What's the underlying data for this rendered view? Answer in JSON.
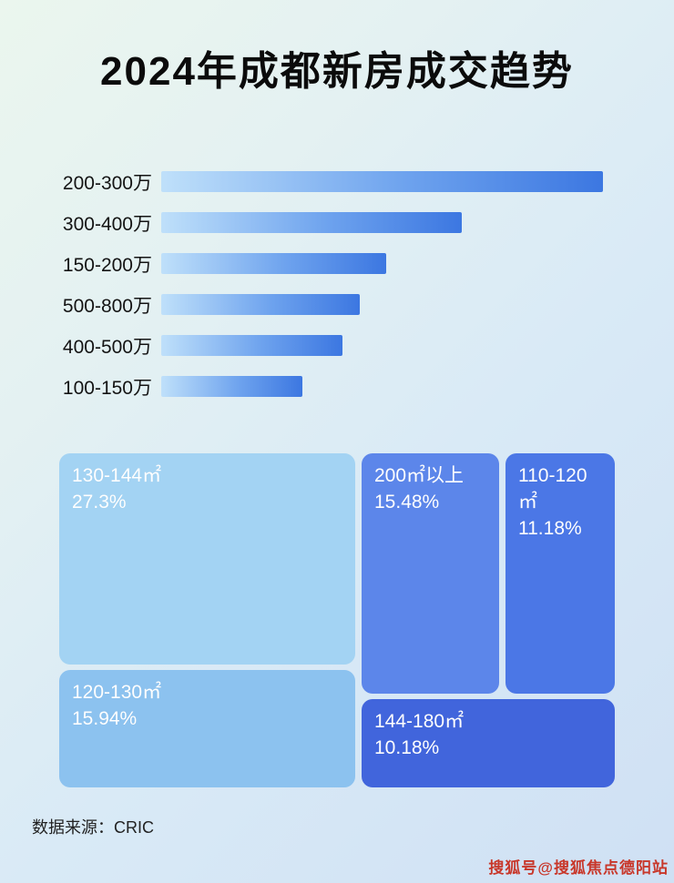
{
  "page": {
    "title": "2024年成都新房成交趋势",
    "source_note": "数据来源：CRIC",
    "watermark": "搜狐号@搜狐焦点德阳站"
  },
  "colors": {
    "bar_gradient_start": "#bfe0fa",
    "bar_gradient_end": "#3c77e1",
    "background_top_left": "#ebf6ee",
    "background_bottom_right": "#cfe0f4",
    "title_text": "#0b0b0b",
    "watermark_text": "#c8372a"
  },
  "chart_data": [
    {
      "type": "bar",
      "orientation": "horizontal",
      "title": "2024年成都新房成交趋势",
      "categories": [
        "200-300万",
        "300-400万",
        "150-200万",
        "500-800万",
        "400-500万",
        "100-150万"
      ],
      "values": [
        100,
        68,
        51,
        45,
        41,
        32
      ],
      "value_note": "no numeric axis shown; values estimated as bar length relative to longest bar = 100",
      "xlabel": "",
      "ylabel": "",
      "grid": false,
      "legend": false,
      "bar_color_gradient": [
        "#bfe0fa",
        "#3c77e1"
      ]
    },
    {
      "type": "treemap",
      "title": "",
      "source": "CRIC",
      "items": [
        {
          "label": "130-144㎡",
          "value": 27.3,
          "value_label": "27.3%",
          "color": "#a3d3f3"
        },
        {
          "label": "200㎡以上",
          "value": 15.48,
          "value_label": "15.48%",
          "color": "#5c86ea"
        },
        {
          "label": "110-120㎡",
          "value": 11.18,
          "value_label": "11.18%",
          "color": "#4b77e6"
        },
        {
          "label": "120-130㎡",
          "value": 15.94,
          "value_label": "15.94%",
          "color": "#8cc2ef"
        },
        {
          "label": "144-180㎡",
          "value": 10.18,
          "value_label": "10.18%",
          "color": "#4165dc"
        }
      ]
    }
  ]
}
